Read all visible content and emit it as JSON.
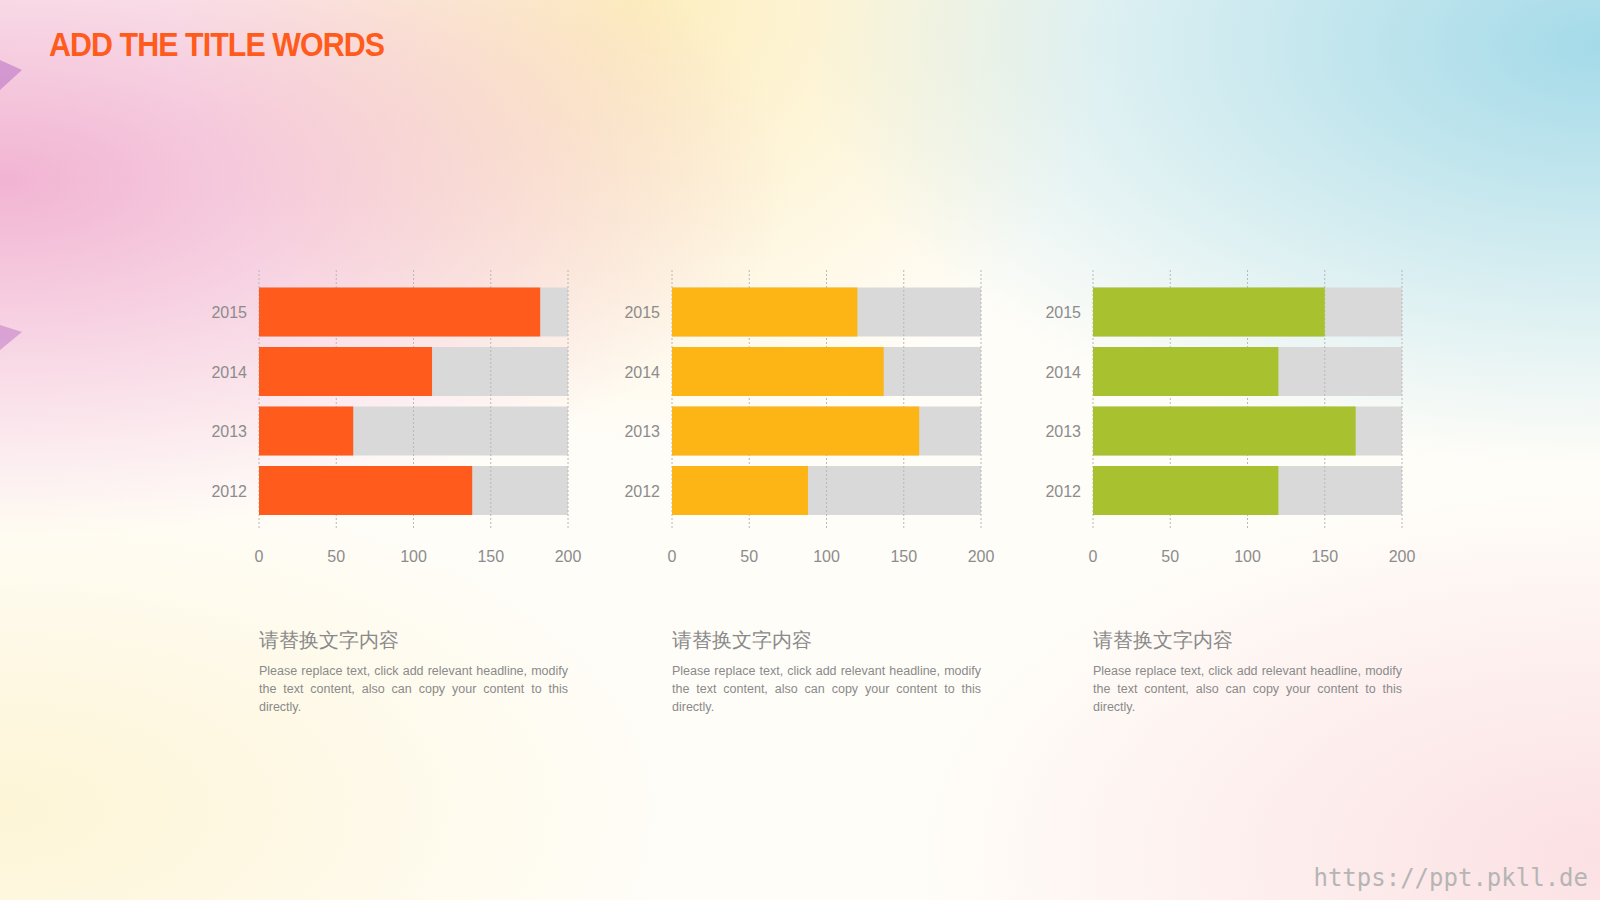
{
  "title": "ADD THE TITLE WORDS",
  "watermark": "https://ppt.pkll.de",
  "chart_data": [
    {
      "type": "bar",
      "orientation": "horizontal",
      "categories": [
        "2015",
        "2014",
        "2013",
        "2012"
      ],
      "values": [
        182,
        112,
        61,
        138
      ],
      "color": "#ff5b1c",
      "xlim": [
        0,
        200
      ],
      "xticks": [
        0,
        50,
        100,
        150,
        200
      ],
      "grid": true
    },
    {
      "type": "bar",
      "orientation": "horizontal",
      "categories": [
        "2015",
        "2014",
        "2013",
        "2012"
      ],
      "values": [
        120,
        137,
        160,
        88
      ],
      "color": "#fdb515",
      "xlim": [
        0,
        200
      ],
      "xticks": [
        0,
        50,
        100,
        150,
        200
      ],
      "grid": true
    },
    {
      "type": "bar",
      "orientation": "horizontal",
      "categories": [
        "2015",
        "2014",
        "2013",
        "2012"
      ],
      "values": [
        150,
        120,
        170,
        120
      ],
      "color": "#a8c22f",
      "xlim": [
        0,
        200
      ],
      "xticks": [
        0,
        50,
        100,
        150,
        200
      ],
      "grid": true
    }
  ],
  "captions": [
    {
      "heading": "请替换文字内容",
      "text": "Please replace text, click add relevant headline, modify the text content, also can copy your content to this directly."
    },
    {
      "heading": "请替换文字内容",
      "text": "Please replace text, click add relevant headline, modify the text content, also can copy your content to this directly."
    },
    {
      "heading": "请替换文字内容",
      "text": "Please replace text, click add relevant headline, modify the text content, also can copy your content to this directly."
    }
  ]
}
